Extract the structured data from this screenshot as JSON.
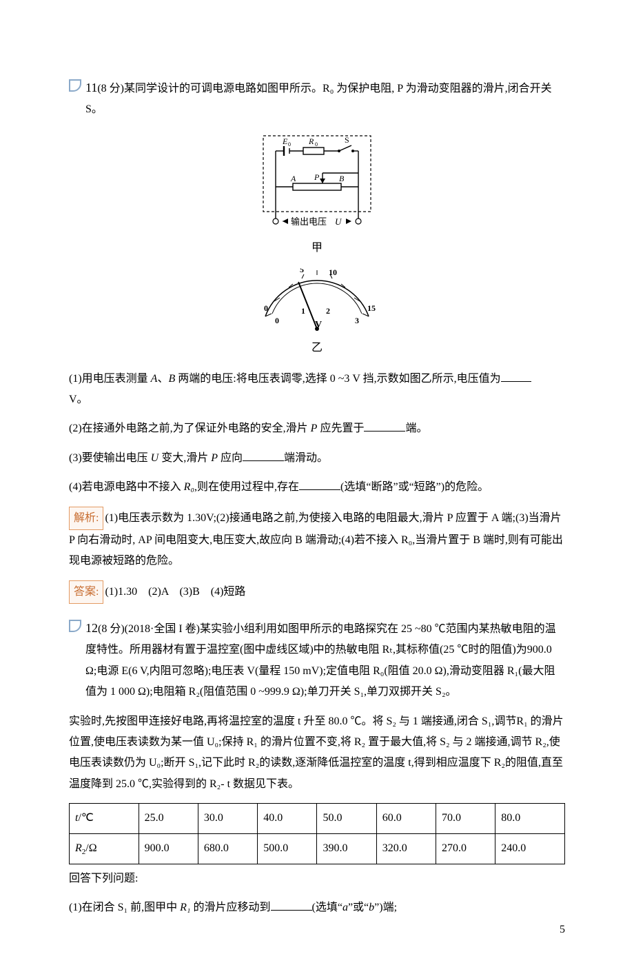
{
  "page_number": "5",
  "q11": {
    "number": "11",
    "points": "(8 分)",
    "stem": "某同学设计的可调电源电路如图甲所示。R₀ 为保护电阻, P 为滑动变阻器的滑片,闭合开关 S。",
    "circuit": {
      "E_label": "E₀",
      "R_label": "R₀",
      "S_label": "S",
      "A_label": "A",
      "P_label": "P",
      "B_label": "B",
      "output_label": "输出电压U",
      "box_stroke": "#000",
      "dash": "4,3",
      "wire_stroke": "#000"
    },
    "caption_top": "甲",
    "meter": {
      "ticks_major": [
        "0",
        "5",
        "10",
        "15"
      ],
      "ticks_minor": [
        "0",
        "1",
        "2",
        "3"
      ],
      "V_label": "V",
      "needle_angle_deg": 115,
      "arc_stroke": "#000"
    },
    "caption_bottom": "乙",
    "sub1_a": "(1)用电压表测量 ",
    "sub1_b": "A",
    "sub1_c": "、",
    "sub1_d": "B",
    "sub1_e": " 两端的电压:将电压表调零,选择 0 ~3 V 挡,示数如图乙所示,电压值为",
    "sub1_f": "V。",
    "sub2_a": "(2)在接通外电路之前,为了保证外电路的安全,滑片 ",
    "sub2_b": "P",
    "sub2_c": " 应先置于",
    "sub2_d": "端。",
    "sub3_a": "(3)要使输出电压 ",
    "sub3_b": "U",
    "sub3_c": " 变大,滑片 ",
    "sub3_d": "P",
    "sub3_e": " 应向",
    "sub3_f": "端滑动。",
    "sub4_a": "(4)若电源电路中不接入 ",
    "sub4_b": "R₀",
    "sub4_c": ",则在使用过程中,存在",
    "sub4_d": "(选填“断路”或“短路”)的危险。",
    "analysis_label": "解析:",
    "analysis_text": "(1)电压表示数为 1.30V;(2)接通电路之前,为使接入电路的电阻最大,滑片 P 应置于 A 端;(3)当滑片 P 向右滑动时, AP 间电阻变大,电压变大,故应向 B 端滑动;(4)若不接入 R₀,当滑片置于 B 端时,则有可能出现电源被短路的危险。",
    "answer_label": "答案:",
    "answer_text": "(1)1.30　(2)A　(3)B　(4)短路"
  },
  "q12": {
    "number": "12",
    "points": "(8 分)",
    "source": "(2018·全国 I 卷)",
    "stem": "某实验小组利用如图甲所示的电路探究在 25 ~80 ℃范围内某热敏电阻的温度特性。所用器材有置于温控室(图中虚线区域)中的热敏电阻 Rₜ,其标称值(25 ℃时的阻值)为900.0 Ω;电源 E(6 V,内阻可忽略);电压表 V(量程 150 mV);定值电阻 R₀(阻值 20.0 Ω),滑动变阻器 R₁(最大阻值为 1 000 Ω);电阻箱 R₂(阻值范围 0 ~999.9 Ω);单刀开关 S₁,单刀双掷开关 S₂。",
    "para2": "实验时,先按图甲连接好电路,再将温控室的温度 t 升至 80.0 ℃。将 S₂ 与 1 端接通,闭合 S₁,调节R₁ 的滑片位置,使电压表读数为某一值 U₀;保持 R₁ 的滑片位置不变,将 R₂ 置于最大值,将 S₂ 与 2 端接通,调节 R₂,使电压表读数仍为 U₀;断开 S₁,记下此时 R₂的读数,逐渐降低温控室的温度 t,得到相应温度下 R₂的阻值,直至温度降到 25.0 ℃,实验得到的 R₂- t 数据见下表。",
    "table": {
      "row1_label_html": "<span class='italic'>t</span>/℃",
      "row2_label_html": "<span class='italic'>R</span><span class='sub'>2</span>/Ω",
      "cols": [
        "25.0",
        "30.0",
        "40.0",
        "50.0",
        "60.0",
        "70.0",
        "80.0"
      ],
      "vals": [
        "900.0",
        "680.0",
        "500.0",
        "390.0",
        "320.0",
        "270.0",
        "240.0"
      ],
      "col_widths": [
        "14%",
        "12%",
        "12%",
        "12%",
        "12%",
        "12%",
        "12%",
        "14%"
      ]
    },
    "after_table": "回答下列问题:",
    "sub1_a": "(1)在闭合 S₁ 前,图甲中 ",
    "sub1_b": "R₁",
    "sub1_c": " 的滑片应移动到",
    "sub1_d": "(选填“",
    "sub1_e": "a",
    "sub1_f": "”或“",
    "sub1_g": "b",
    "sub1_h": "”)端;"
  }
}
